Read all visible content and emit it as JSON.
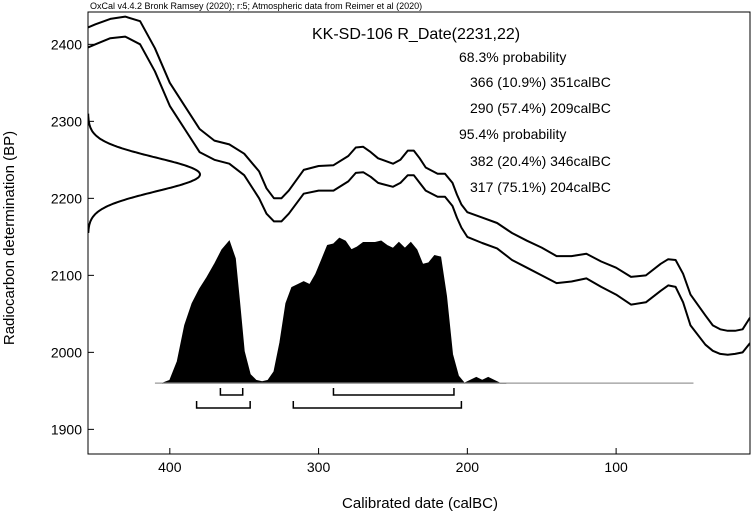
{
  "chart_data": {
    "type": "area",
    "header": "OxCal v4.4.2 Bronk Ramsey (2020); r:5; Atmospheric data from Reimer et al (2020)",
    "title": "KK-SD-106 R_Date(2231,22)",
    "xlabel": "Calibrated date (calBC)",
    "ylabel": "Radiocarbon determination (BP)",
    "xlim": [
      455,
      10
    ],
    "ylim": [
      1868,
      2442
    ],
    "x_ticks": [
      400,
      300,
      200,
      100
    ],
    "y_ticks": [
      1900,
      2000,
      2100,
      2200,
      2300,
      2400
    ],
    "grid": false,
    "ranges_text": [
      "68.3% probability",
      "366 (10.9%) 351calBC",
      "290 (57.4%) 209calBC",
      "95.4% probability",
      "382 (20.4%) 346calBC",
      "317 (75.1%) 204calBC"
    ],
    "calibration_curve": {
      "x": [
        455,
        450,
        440,
        430,
        420,
        410,
        400,
        390,
        380,
        370,
        360,
        350,
        340,
        335,
        330,
        325,
        320,
        310,
        300,
        290,
        280,
        275,
        270,
        265,
        260,
        250,
        245,
        240,
        236,
        232,
        228,
        220,
        215,
        210,
        207,
        204,
        200,
        190,
        180,
        170,
        160,
        150,
        140,
        130,
        120,
        110,
        100,
        90,
        80,
        70,
        65,
        60,
        55,
        50,
        40,
        35,
        30,
        25,
        20,
        15,
        10
      ],
      "y_upper": [
        2422,
        2426,
        2433,
        2436,
        2430,
        2395,
        2350,
        2320,
        2290,
        2275,
        2270,
        2258,
        2235,
        2213,
        2200,
        2200,
        2210,
        2237,
        2242,
        2243,
        2255,
        2266,
        2267,
        2260,
        2252,
        2245,
        2250,
        2262,
        2262,
        2252,
        2240,
        2232,
        2232,
        2220,
        2205,
        2192,
        2182,
        2175,
        2168,
        2155,
        2145,
        2136,
        2125,
        2125,
        2128,
        2118,
        2110,
        2098,
        2100,
        2115,
        2121,
        2120,
        2102,
        2075,
        2048,
        2035,
        2030,
        2028,
        2028,
        2030,
        2045
      ],
      "y_lower": [
        2396,
        2400,
        2408,
        2410,
        2400,
        2365,
        2320,
        2290,
        2260,
        2250,
        2245,
        2230,
        2200,
        2180,
        2170,
        2170,
        2180,
        2206,
        2210,
        2210,
        2222,
        2233,
        2234,
        2228,
        2220,
        2215,
        2220,
        2230,
        2230,
        2220,
        2210,
        2202,
        2202,
        2190,
        2175,
        2162,
        2150,
        2142,
        2135,
        2120,
        2110,
        2100,
        2090,
        2092,
        2096,
        2085,
        2075,
        2062,
        2065,
        2080,
        2087,
        2085,
        2065,
        2035,
        2010,
        2002,
        1998,
        1997,
        1998,
        2000,
        2012
      ]
    },
    "radiocarbon_distribution": {
      "mean": 2231,
      "sigma": 22,
      "y_range": [
        2155,
        2310
      ]
    },
    "posterior_distribution": {
      "baseline_y": 1960,
      "x": [
        405,
        400,
        395,
        390,
        385,
        380,
        375,
        370,
        365,
        360,
        356,
        353,
        350,
        346,
        342,
        338,
        334,
        330,
        326,
        322,
        318,
        314,
        310,
        306,
        302,
        298,
        294,
        290,
        286,
        282,
        278,
        274,
        270,
        266,
        262,
        258,
        254,
        250,
        246,
        242,
        238,
        234,
        230,
        226,
        222,
        218,
        214,
        210,
        206,
        202,
        198,
        194,
        190,
        186,
        182,
        178,
        174
      ],
      "density": [
        0.0,
        0.02,
        0.15,
        0.4,
        0.55,
        0.65,
        0.73,
        0.82,
        0.92,
        0.98,
        0.86,
        0.55,
        0.22,
        0.06,
        0.02,
        0.01,
        0.02,
        0.08,
        0.28,
        0.55,
        0.66,
        0.68,
        0.7,
        0.68,
        0.75,
        0.85,
        0.95,
        0.96,
        1.0,
        0.98,
        0.92,
        0.94,
        0.97,
        0.97,
        0.97,
        0.98,
        0.95,
        0.93,
        0.97,
        0.93,
        0.97,
        0.92,
        0.82,
        0.83,
        0.88,
        0.87,
        0.6,
        0.2,
        0.05,
        0.0,
        0.02,
        0.04,
        0.02,
        0.04,
        0.02,
        0.0,
        0.0
      ],
      "baseline_xlim": [
        410,
        48
      ]
    },
    "range_bars_68": [
      [
        366,
        351
      ],
      [
        290,
        209
      ]
    ],
    "range_bars_95": [
      [
        382,
        346
      ],
      [
        317,
        204
      ]
    ]
  }
}
